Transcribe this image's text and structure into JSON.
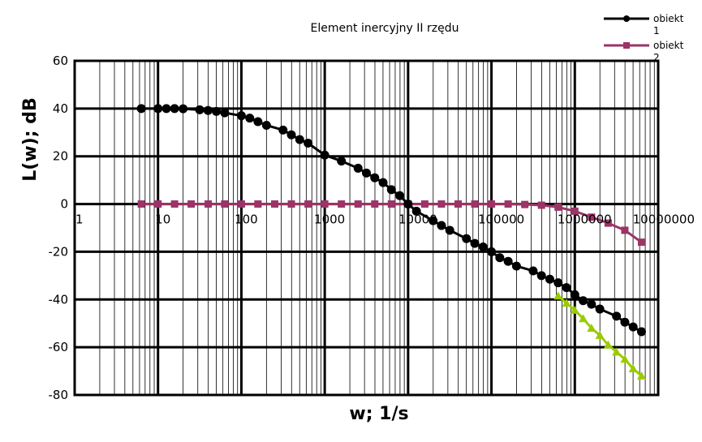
{
  "chart_data": {
    "type": "line",
    "title": "Element inercyjny II rzędu",
    "xlabel": "w; 1/s",
    "ylabel": "L(w); dB",
    "x_scale": "log",
    "xlim": [
      1,
      10000000
    ],
    "ylim": [
      -80,
      60
    ],
    "grid": true,
    "legend_position": "top-right",
    "x_tick_labels": [
      "1",
      "10",
      "100",
      "1000",
      "10000",
      "100000",
      "1000000",
      "10000000"
    ],
    "y_tick_labels": [
      "60",
      "40",
      "20",
      "0",
      "-20",
      "-40",
      "-60",
      "-80"
    ],
    "x_ticks": [
      1,
      10,
      100,
      1000,
      10000,
      100000,
      1000000,
      10000000
    ],
    "y_ticks": [
      60,
      40,
      20,
      0,
      -20,
      -40,
      -60,
      -80
    ],
    "series": [
      {
        "name": "obiekt 1",
        "color": "#000000",
        "marker": "circle",
        "x": [
          6.3,
          10,
          12.6,
          15.8,
          20,
          31.6,
          39.8,
          50.1,
          63.1,
          100,
          126,
          158,
          200,
          316,
          398,
          501,
          631,
          1000,
          1585,
          2512,
          3162,
          3981,
          5012,
          6310,
          7943,
          10000,
          12589,
          19953,
          25119,
          31623,
          50119,
          63096,
          79433,
          100000,
          125893,
          158489,
          199526,
          316228,
          398107,
          501187,
          630957,
          794328,
          1000000,
          1258925,
          1584893,
          1995262,
          3162278,
          3981072,
          5011872,
          6309573
        ],
        "y": [
          40,
          40,
          40,
          40,
          39.9,
          39.5,
          39.2,
          38.8,
          38.2,
          37,
          36,
          34.5,
          33,
          31,
          29,
          27,
          25.5,
          20.5,
          18,
          15,
          13,
          11,
          9,
          6,
          3.5,
          0,
          -3,
          -7,
          -9,
          -11,
          -14.5,
          -16.5,
          -18,
          -20,
          -22.5,
          -24,
          -26,
          -28,
          -30,
          -31.5,
          -33,
          -35,
          -38,
          -40.5,
          -42,
          -44,
          -47,
          -49.5,
          -51.5,
          -53.5
        ]
      },
      {
        "name": "obiekt 2",
        "color": "#9b3467",
        "marker": "square",
        "x": [
          6.3,
          10,
          15.8,
          25,
          40,
          63,
          100,
          158,
          251,
          398,
          631,
          1000,
          1585,
          2512,
          3981,
          6310,
          10000,
          15849,
          25119,
          39811,
          63096,
          100000,
          158489,
          251189,
          398107,
          630957,
          1000000,
          1584893,
          2511886,
          3981072,
          6309573
        ],
        "y": [
          0,
          0,
          0,
          0,
          0,
          0,
          0,
          0,
          0,
          0,
          0,
          0,
          0,
          0,
          0,
          0,
          0,
          0,
          0,
          0,
          0,
          0,
          0,
          -0.2,
          -0.5,
          -1.3,
          -3,
          -5.5,
          -8,
          -11,
          -16
        ]
      },
      {
        "name": "",
        "color": "#99cc00",
        "marker": "triangle",
        "x": [
          631000,
          794328,
          1000000,
          1258925,
          1584893,
          1995262,
          2511886,
          3162278,
          3981072,
          5011872,
          6309573
        ],
        "y": [
          -38.5,
          -41.5,
          -44.5,
          -48,
          -52,
          -55,
          -59,
          -62,
          -65,
          -69,
          -72
        ]
      }
    ]
  }
}
